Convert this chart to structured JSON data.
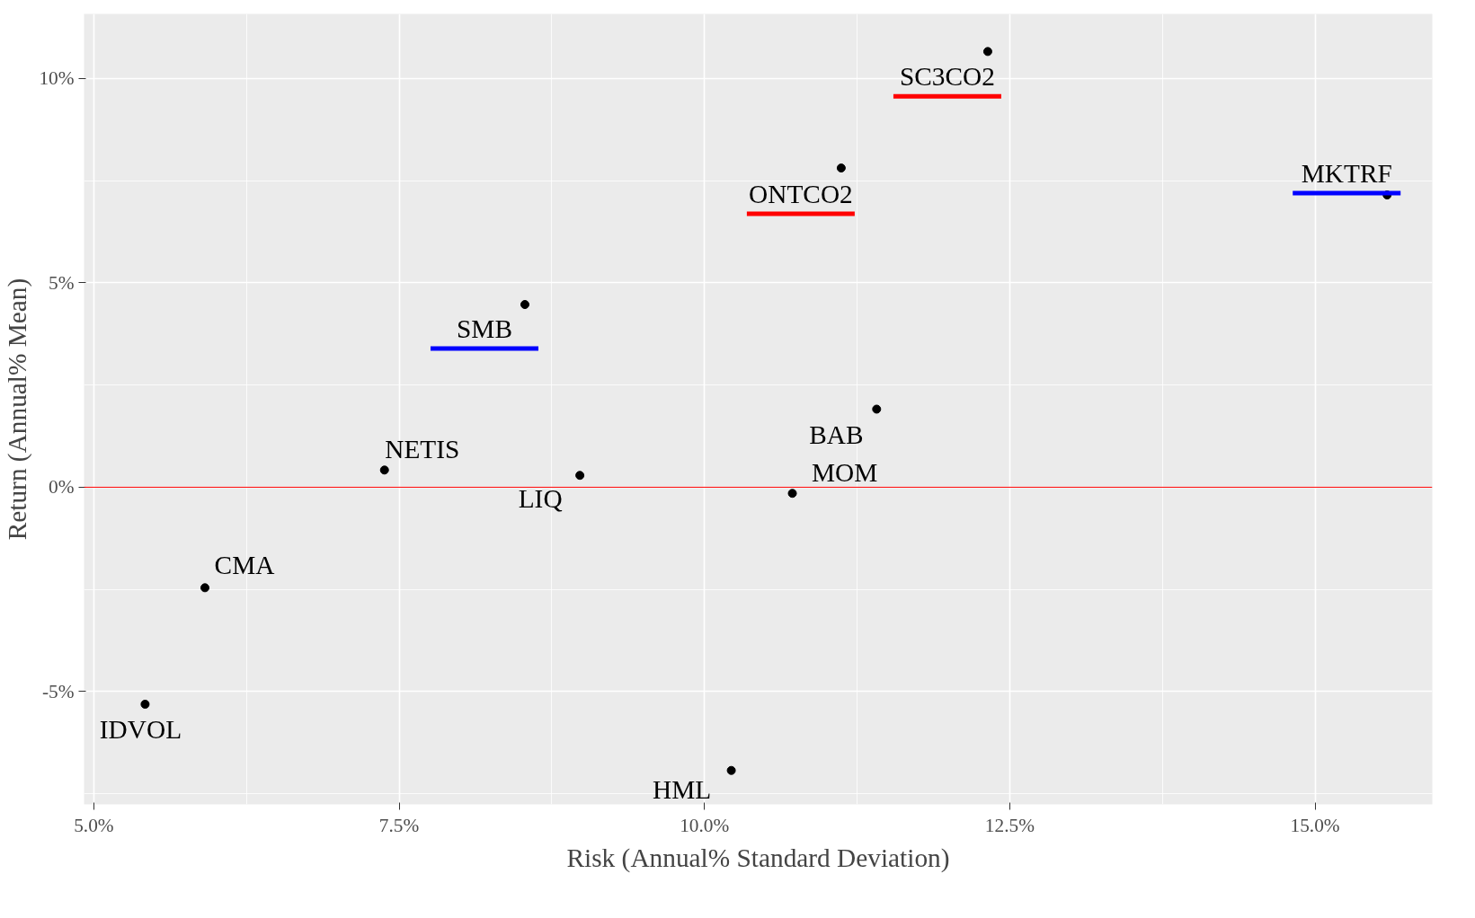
{
  "chart_data": {
    "type": "scatter",
    "xlabel": "Risk (Annual% Standard Deviation)",
    "ylabel": "Return (Annual% Mean)",
    "xlim": [
      4.92,
      15.96
    ],
    "ylim": [
      -7.76,
      11.58
    ],
    "xticks": [
      {
        "value": 5,
        "label": "5.0%"
      },
      {
        "value": 7.5,
        "label": "7.5%"
      },
      {
        "value": 10,
        "label": "10.0%"
      },
      {
        "value": 12.5,
        "label": "12.5%"
      },
      {
        "value": 15,
        "label": "15.0%"
      }
    ],
    "yticks": [
      {
        "value": -5,
        "label": "-5%"
      },
      {
        "value": 0,
        "label": "0%"
      },
      {
        "value": 5,
        "label": "5%"
      },
      {
        "value": 10,
        "label": "10%"
      }
    ],
    "grid": true,
    "marker": "circle",
    "ref_lines": [
      {
        "axis": "y",
        "value": 0,
        "label": null,
        "color": "#ff0000"
      }
    ],
    "series": [
      {
        "color": "#000000",
        "x": [
          12.32,
          11.12
        ],
        "values": [
          10.66,
          7.81
        ],
        "value_labels": [
          "SC3CO2",
          "ONTCO2"
        ]
      },
      {
        "color": "#000000",
        "x": [
          15.59,
          8.53,
          10.22
        ],
        "values": [
          7.15,
          4.47,
          -6.93
        ],
        "value_labels": [
          "MKTRF",
          "SMB",
          "HML"
        ]
      },
      {
        "color": "#000000",
        "x": [
          11.41,
          7.38,
          8.98,
          10.72,
          5.91,
          5.42
        ],
        "values": [
          1.91,
          0.42,
          0.29,
          -0.15,
          -2.46,
          -5.31
        ],
        "value_labels": [
          "BAB",
          "NETIS",
          "LIQ",
          "MOM",
          "CMA",
          "IDVOL"
        ]
      }
    ]
  }
}
